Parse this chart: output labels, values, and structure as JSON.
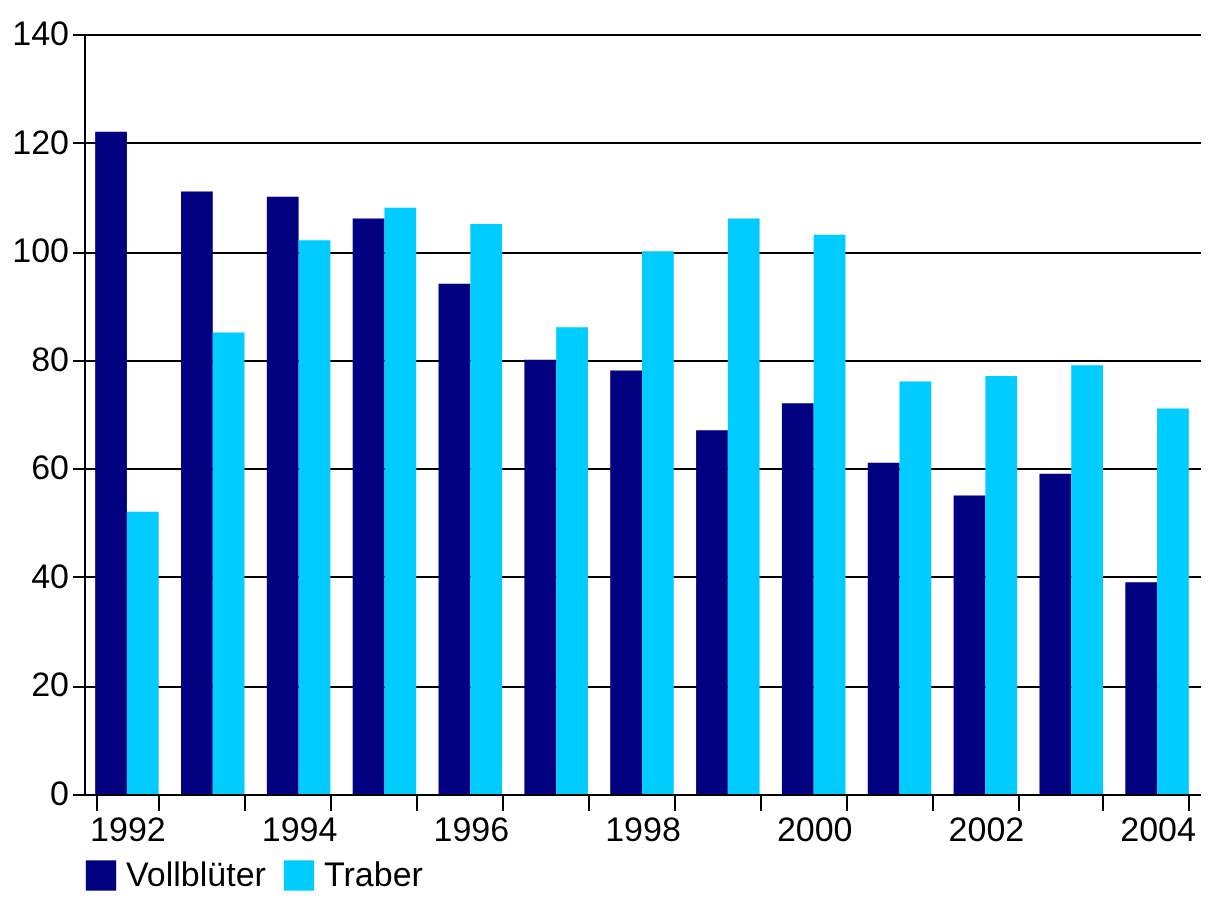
{
  "chart_data": {
    "type": "bar",
    "categories": [
      "1992",
      null,
      "1994",
      null,
      "1996",
      null,
      "1998",
      null,
      "2000",
      null,
      "2002",
      null,
      "2004"
    ],
    "series": [
      {
        "name": "Vollblüter",
        "color": "#000080",
        "values": [
          122,
          111,
          110,
          106,
          94,
          80,
          78,
          67,
          72,
          61,
          55,
          59,
          39
        ]
      },
      {
        "name": "Traber",
        "color": "#00ccff",
        "values": [
          52,
          85,
          102,
          108,
          105,
          86,
          100,
          106,
          103,
          76,
          77,
          79,
          71
        ]
      }
    ],
    "ylim": [
      0,
      140
    ],
    "yticks": [
      0,
      20,
      40,
      60,
      80,
      100,
      120,
      140
    ],
    "grid": "y",
    "legend": "bottom left"
  }
}
